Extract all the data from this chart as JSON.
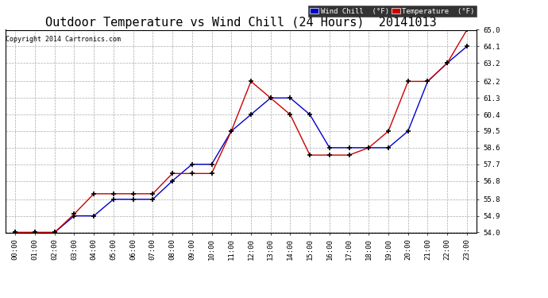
{
  "title": "Outdoor Temperature vs Wind Chill (24 Hours)  20141013",
  "copyright": "Copyright 2014 Cartronics.com",
  "x_labels": [
    "00:00",
    "01:00",
    "02:00",
    "03:00",
    "04:00",
    "05:00",
    "06:00",
    "07:00",
    "08:00",
    "09:00",
    "10:00",
    "11:00",
    "12:00",
    "13:00",
    "14:00",
    "15:00",
    "16:00",
    "17:00",
    "18:00",
    "19:00",
    "20:00",
    "21:00",
    "22:00",
    "23:00"
  ],
  "temperature": [
    54.0,
    54.0,
    54.0,
    55.0,
    56.1,
    56.1,
    56.1,
    56.1,
    57.2,
    57.2,
    57.2,
    59.5,
    62.2,
    61.3,
    60.4,
    58.2,
    58.2,
    58.2,
    58.6,
    59.5,
    62.2,
    62.2,
    63.2,
    65.0
  ],
  "wind_chill": [
    54.0,
    54.0,
    54.0,
    54.9,
    54.9,
    55.8,
    55.8,
    55.8,
    56.8,
    57.7,
    57.7,
    59.5,
    60.4,
    61.3,
    61.3,
    60.4,
    58.6,
    58.6,
    58.6,
    58.6,
    59.5,
    62.2,
    63.2,
    64.1
  ],
  "ylim": [
    54.0,
    65.0
  ],
  "yticks": [
    54.0,
    54.9,
    55.8,
    56.8,
    57.7,
    58.6,
    59.5,
    60.4,
    61.3,
    62.2,
    63.2,
    64.1,
    65.0
  ],
  "temp_color": "#cc0000",
  "wind_chill_color": "#0000cc",
  "bg_color": "#ffffff",
  "grid_color": "#aaaaaa",
  "legend_wind_chill_bg": "#0000cc",
  "legend_temp_bg": "#cc0000",
  "title_fontsize": 11,
  "marker": "+",
  "marker_color": "#000000",
  "marker_size": 5,
  "marker_linewidth": 1.2,
  "line_width": 1.0
}
